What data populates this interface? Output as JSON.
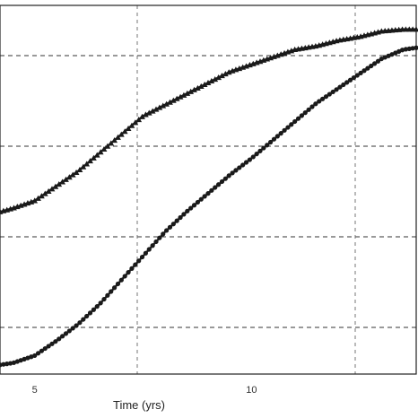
{
  "chart_data": {
    "type": "line",
    "title": "",
    "xlabel": "Time (yrs)",
    "ylabel": "",
    "xlim": [
      4.2,
      13.8
    ],
    "ylim": [
      0,
      1
    ],
    "x_ticks": [
      5,
      10
    ],
    "x_tick_labels": [
      "5",
      "10"
    ],
    "grid": "dashed",
    "legend": "none",
    "series": [
      {
        "marker": "triangle",
        "color": "#1a1a1a",
        "x": [
          4.2,
          4.5,
          5.0,
          5.5,
          6.0,
          6.5,
          7.0,
          7.5,
          8.0,
          8.5,
          9.0,
          9.5,
          10.0,
          10.5,
          11.0,
          11.5,
          12.0,
          12.5,
          13.0,
          13.5,
          13.8
        ],
        "y": [
          0.44,
          0.45,
          0.47,
          0.51,
          0.55,
          0.6,
          0.65,
          0.7,
          0.73,
          0.76,
          0.79,
          0.82,
          0.84,
          0.86,
          0.88,
          0.89,
          0.905,
          0.915,
          0.93,
          0.935,
          0.935
        ]
      },
      {
        "marker": "circle",
        "color": "#1a1a1a",
        "x": [
          4.2,
          4.5,
          5.0,
          5.5,
          6.0,
          6.5,
          7.0,
          7.5,
          8.0,
          8.5,
          9.0,
          9.5,
          10.0,
          10.5,
          11.0,
          11.5,
          12.0,
          12.5,
          13.0,
          13.5,
          13.8
        ],
        "y": [
          0.025,
          0.03,
          0.05,
          0.09,
          0.135,
          0.19,
          0.255,
          0.32,
          0.385,
          0.44,
          0.49,
          0.54,
          0.585,
          0.635,
          0.685,
          0.735,
          0.775,
          0.815,
          0.855,
          0.88,
          0.885
        ]
      }
    ]
  }
}
